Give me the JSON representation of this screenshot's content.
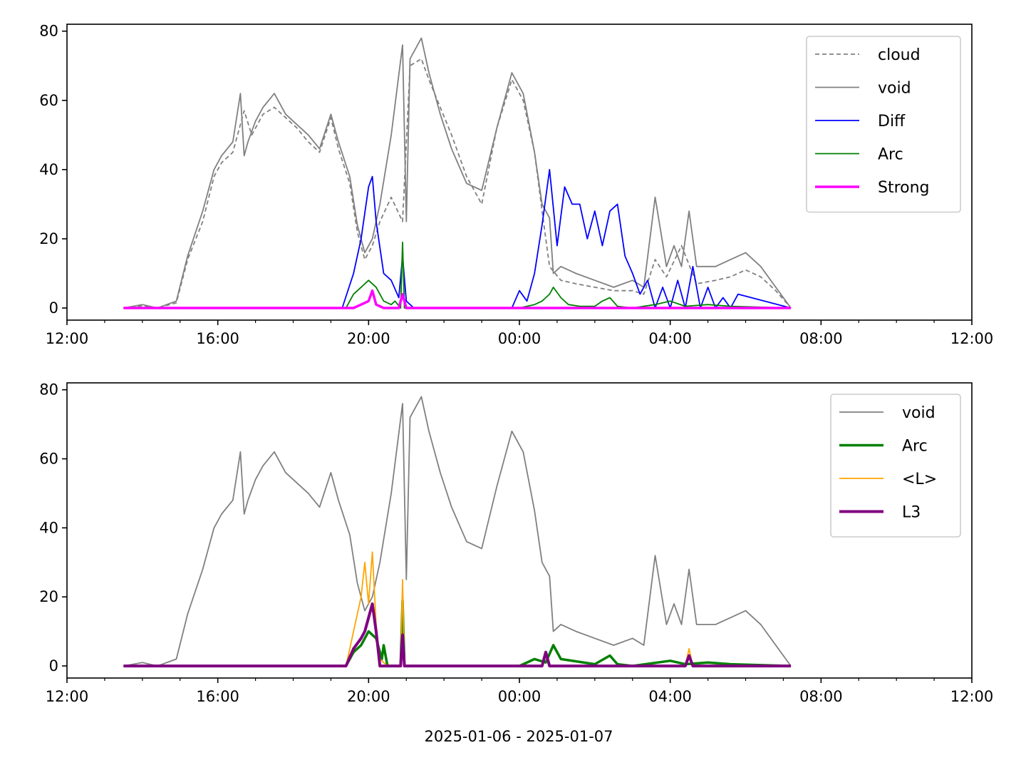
{
  "chart_data": [
    {
      "type": "line",
      "x_unit": "hours since 2025-01-06 12:00",
      "xlim": [
        0,
        24
      ],
      "ylim": [
        -3.5,
        82
      ],
      "x_ticks": [
        {
          "v": 0,
          "label": "12:00"
        },
        {
          "v": 4,
          "label": "16:00"
        },
        {
          "v": 8,
          "label": "20:00"
        },
        {
          "v": 12,
          "label": "00:00"
        },
        {
          "v": 16,
          "label": "04:00"
        },
        {
          "v": 20,
          "label": "08:00"
        },
        {
          "v": 24,
          "label": "12:00"
        }
      ],
      "y_ticks": [
        0,
        20,
        40,
        60,
        80
      ],
      "xlabel": "",
      "legend_position": "upper right",
      "series": [
        {
          "name": "cloud",
          "color": "#808080",
          "dash": "6,4",
          "width": 1.8,
          "x": [
            1.5,
            2.0,
            2.4,
            2.9,
            3.2,
            3.6,
            3.9,
            4.1,
            4.4,
            4.7,
            4.9,
            5.2,
            5.5,
            5.8,
            6.1,
            6.4,
            6.7,
            7.0,
            7.2,
            7.5,
            7.7,
            7.9,
            8.1,
            8.3,
            8.6,
            8.9,
            9.1,
            9.4,
            9.6,
            9.9,
            10.2,
            10.6,
            11.0,
            11.4,
            11.8,
            12.1,
            12.4,
            12.6,
            12.8,
            13.1,
            13.5,
            14.0,
            14.5,
            15.0,
            15.3,
            15.6,
            15.9,
            16.3,
            16.7,
            17.2,
            17.6,
            18.0,
            18.4,
            18.8,
            19.2
          ],
          "y": [
            0,
            0.6,
            0,
            1.5,
            14,
            25,
            38,
            42,
            45,
            57,
            50,
            56,
            58,
            55,
            52,
            48,
            45,
            55,
            46,
            36,
            22,
            14,
            18,
            25,
            32,
            25,
            70,
            72,
            66,
            58,
            50,
            38,
            30,
            52,
            66,
            60,
            45,
            28,
            12,
            8,
            7,
            6,
            5,
            5,
            4,
            14,
            9,
            18,
            7,
            8,
            9,
            11,
            9,
            5,
            0
          ]
        },
        {
          "name": "void",
          "color": "#808080",
          "dash": "",
          "width": 1.8,
          "x": [
            1.5,
            2.0,
            2.4,
            2.9,
            3.2,
            3.6,
            3.9,
            4.1,
            4.4,
            4.6,
            4.7,
            4.8,
            5.0,
            5.2,
            5.5,
            5.8,
            6.1,
            6.4,
            6.7,
            7.0,
            7.2,
            7.5,
            7.7,
            7.9,
            8.1,
            8.3,
            8.6,
            8.9,
            9.0,
            9.1,
            9.4,
            9.6,
            9.9,
            10.2,
            10.6,
            11.0,
            11.4,
            11.8,
            12.1,
            12.4,
            12.6,
            12.8,
            12.9,
            13.1,
            13.5,
            14.0,
            14.5,
            15.0,
            15.3,
            15.6,
            15.9,
            16.1,
            16.3,
            16.5,
            16.7,
            17.2,
            17.6,
            18.0,
            18.4,
            18.8,
            19.2
          ],
          "y": [
            0,
            1,
            0,
            2,
            15,
            28,
            40,
            44,
            48,
            62,
            44,
            48,
            54,
            58,
            62,
            56,
            53,
            50,
            46,
            56,
            48,
            38,
            24,
            16,
            20,
            30,
            50,
            76,
            25,
            72,
            78,
            68,
            56,
            46,
            36,
            34,
            52,
            68,
            62,
            45,
            30,
            26,
            10,
            12,
            10,
            8,
            6,
            8,
            6,
            32,
            12,
            18,
            12,
            28,
            12,
            12,
            14,
            16,
            12,
            6,
            0
          ]
        },
        {
          "name": "Diff",
          "color": "#0000ff",
          "dash": "",
          "width": 1.8,
          "x": [
            1.5,
            7.3,
            7.6,
            7.8,
            8.0,
            8.1,
            8.2,
            8.4,
            8.6,
            8.8,
            8.9,
            9.0,
            9.2,
            11.8,
            12.0,
            12.2,
            12.4,
            12.6,
            12.8,
            13.0,
            13.2,
            13.4,
            13.6,
            13.8,
            14.0,
            14.2,
            14.4,
            14.6,
            14.8,
            15.0,
            15.2,
            15.4,
            15.6,
            15.8,
            16.0,
            16.2,
            16.4,
            16.6,
            16.8,
            17.0,
            17.2,
            17.4,
            17.6,
            17.8,
            19.2
          ],
          "y": [
            0,
            0,
            10,
            20,
            35,
            38,
            25,
            10,
            8,
            3,
            15,
            2,
            0,
            0,
            5,
            2,
            10,
            24,
            40,
            18,
            35,
            30,
            30,
            20,
            28,
            18,
            28,
            30,
            15,
            10,
            4,
            8,
            0,
            6,
            0,
            8,
            0,
            12,
            0,
            6,
            0,
            3,
            0,
            4,
            0
          ]
        },
        {
          "name": "Arc",
          "color": "#008000",
          "dash": "",
          "width": 1.8,
          "x": [
            1.5,
            7.4,
            7.6,
            7.8,
            8.0,
            8.2,
            8.4,
            8.6,
            8.7,
            8.85,
            8.9,
            8.95,
            9.2,
            12.0,
            12.4,
            12.6,
            12.8,
            12.9,
            13.1,
            13.3,
            13.6,
            14.0,
            14.2,
            14.4,
            14.6,
            15.0,
            15.6,
            16.0,
            16.4,
            17.0,
            17.6,
            19.2
          ],
          "y": [
            0,
            0,
            4,
            6,
            8,
            6,
            2,
            1,
            2,
            0,
            19,
            0,
            0,
            0,
            1,
            2,
            4,
            6,
            3,
            1,
            0.5,
            0.5,
            2,
            3,
            0.5,
            0,
            1,
            2,
            0.5,
            1,
            0.5,
            0
          ]
        },
        {
          "name": "Strong",
          "color": "#ff00ff",
          "dash": "",
          "width": 3.5,
          "x": [
            1.5,
            7.6,
            7.8,
            8.0,
            8.1,
            8.2,
            8.4,
            8.8,
            8.9,
            9.0,
            19.2
          ],
          "y": [
            0,
            0,
            1,
            2,
            5,
            1,
            0,
            0,
            4,
            0,
            0
          ]
        }
      ],
      "legend": [
        "cloud",
        "void",
        "Diff",
        "Arc",
        "Strong"
      ]
    },
    {
      "type": "line",
      "x_unit": "hours since 2025-01-06 12:00",
      "xlim": [
        0,
        24
      ],
      "ylim": [
        -3.5,
        82
      ],
      "x_ticks": [
        {
          "v": 0,
          "label": "12:00"
        },
        {
          "v": 4,
          "label": "16:00"
        },
        {
          "v": 8,
          "label": "20:00"
        },
        {
          "v": 12,
          "label": "00:00"
        },
        {
          "v": 16,
          "label": "04:00"
        },
        {
          "v": 20,
          "label": "08:00"
        },
        {
          "v": 24,
          "label": "12:00"
        }
      ],
      "y_ticks": [
        0,
        20,
        40,
        60,
        80
      ],
      "xlabel": "2025-01-06 - 2025-01-07",
      "legend_position": "upper right",
      "series": [
        {
          "name": "void",
          "color": "#808080",
          "dash": "",
          "width": 1.8,
          "x": [
            1.5,
            2.0,
            2.4,
            2.9,
            3.2,
            3.6,
            3.9,
            4.1,
            4.4,
            4.6,
            4.7,
            4.8,
            5.0,
            5.2,
            5.5,
            5.8,
            6.1,
            6.4,
            6.7,
            7.0,
            7.2,
            7.5,
            7.7,
            7.9,
            8.1,
            8.3,
            8.6,
            8.9,
            9.0,
            9.1,
            9.4,
            9.6,
            9.9,
            10.2,
            10.6,
            11.0,
            11.4,
            11.8,
            12.1,
            12.4,
            12.6,
            12.8,
            12.9,
            13.1,
            13.5,
            14.0,
            14.5,
            15.0,
            15.3,
            15.6,
            15.9,
            16.1,
            16.3,
            16.5,
            16.7,
            17.2,
            17.6,
            18.0,
            18.4,
            18.8,
            19.2
          ],
          "y": [
            0,
            1,
            0,
            2,
            15,
            28,
            40,
            44,
            48,
            62,
            44,
            48,
            54,
            58,
            62,
            56,
            53,
            50,
            46,
            56,
            48,
            38,
            24,
            16,
            20,
            30,
            50,
            76,
            25,
            72,
            78,
            68,
            56,
            46,
            36,
            34,
            52,
            68,
            62,
            45,
            30,
            26,
            10,
            12,
            10,
            8,
            6,
            8,
            6,
            32,
            12,
            18,
            12,
            28,
            12,
            12,
            14,
            16,
            12,
            6,
            0
          ]
        },
        {
          "name": "Arc",
          "color": "#008000",
          "dash": "",
          "width": 3.5,
          "x": [
            1.5,
            7.4,
            7.6,
            7.8,
            8.0,
            8.2,
            8.35,
            8.4,
            8.5,
            8.85,
            8.9,
            8.95,
            12.0,
            12.4,
            12.7,
            12.9,
            13.1,
            14.0,
            14.4,
            14.6,
            15.0,
            16.0,
            16.4,
            17.0,
            17.6,
            19.2
          ],
          "y": [
            0,
            0,
            4,
            6,
            10,
            8,
            2,
            6,
            0,
            0,
            19,
            0,
            0,
            2,
            1,
            6,
            2,
            0.5,
            3,
            0.5,
            0,
            1.5,
            0.5,
            1,
            0.5,
            0
          ]
        },
        {
          "name": "<L>",
          "color": "#ffa500",
          "dash": "",
          "width": 1.8,
          "x": [
            1.5,
            7.4,
            7.6,
            7.8,
            7.9,
            8.0,
            8.1,
            8.2,
            8.3,
            8.5,
            8.85,
            8.9,
            8.95,
            12.6,
            12.7,
            12.8,
            16.4,
            16.5,
            16.6,
            19.2
          ],
          "y": [
            0,
            0,
            10,
            20,
            30,
            18,
            33,
            12,
            2,
            0,
            0,
            25,
            0,
            0,
            3,
            0,
            0,
            5,
            0,
            0
          ]
        },
        {
          "name": "L3",
          "color": "#800080",
          "dash": "",
          "width": 4,
          "x": [
            1.5,
            7.4,
            7.6,
            7.8,
            7.9,
            8.0,
            8.1,
            8.2,
            8.3,
            8.85,
            8.9,
            8.95,
            12.6,
            12.7,
            12.8,
            16.4,
            16.5,
            16.6,
            19.2
          ],
          "y": [
            0,
            0,
            5,
            8,
            10,
            14,
            18,
            10,
            0,
            0,
            9,
            0,
            0,
            4,
            0,
            0,
            3,
            0,
            0
          ]
        }
      ],
      "legend": [
        "void",
        "Arc",
        "<L>",
        "L3"
      ]
    }
  ]
}
